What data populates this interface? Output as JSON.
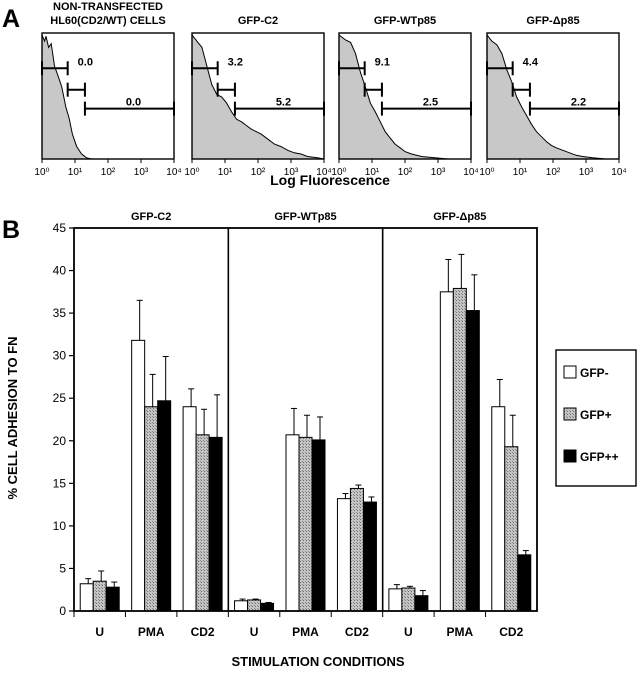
{
  "panel_a_label": "A",
  "panel_b_label": "B",
  "chart_data": [
    {
      "type": "area",
      "panel": "A",
      "xlabel": "Log Fluorescence",
      "x_scale": "log",
      "xlim": [
        1,
        10000
      ],
      "x_tick_labels": [
        "10⁰",
        "10¹",
        "10²",
        "10³",
        "10⁴"
      ],
      "histograms": [
        {
          "title": "NON-TRANSFECTED HL60(CD2/WT) CELLS",
          "title_lines": [
            "NON-TRANSFECTED",
            "HL60(CD2/WT) CELLS"
          ],
          "gates": [
            {
              "name": "GFP-",
              "range": [
                1,
                6
              ],
              "percent": "0.0"
            },
            {
              "name": "GFP+",
              "range": [
                6,
                20
              ],
              "percent": ""
            },
            {
              "name": "GFP++",
              "range": [
                20,
                10000
              ],
              "percent": "0.0"
            }
          ],
          "curve": [
            [
              0,
              1.0
            ],
            [
              0.08,
              0.95
            ],
            [
              0.12,
              0.99
            ],
            [
              0.2,
              0.9
            ],
            [
              0.28,
              0.93
            ],
            [
              0.38,
              0.75
            ],
            [
              0.5,
              0.66
            ],
            [
              0.6,
              0.58
            ],
            [
              0.72,
              0.42
            ],
            [
              0.82,
              0.33
            ],
            [
              0.92,
              0.2
            ],
            [
              1.05,
              0.1
            ],
            [
              1.2,
              0.04
            ],
            [
              1.35,
              0.01
            ],
            [
              1.5,
              0.0
            ],
            [
              4.0,
              0.0
            ]
          ]
        },
        {
          "title": "GFP-C2",
          "title_lines": [
            "GFP-C2"
          ],
          "gates": [
            {
              "name": "GFP-",
              "range": [
                1,
                6
              ],
              "percent": "3.2"
            },
            {
              "name": "GFP+",
              "range": [
                6,
                20
              ],
              "percent": ""
            },
            {
              "name": "GFP++",
              "range": [
                20,
                10000
              ],
              "percent": "5.2"
            }
          ],
          "curve": [
            [
              0,
              1.0
            ],
            [
              0.15,
              0.95
            ],
            [
              0.3,
              0.9
            ],
            [
              0.4,
              0.8
            ],
            [
              0.5,
              0.7
            ],
            [
              0.6,
              0.6
            ],
            [
              0.75,
              0.52
            ],
            [
              0.9,
              0.5
            ],
            [
              1.05,
              0.45
            ],
            [
              1.2,
              0.38
            ],
            [
              1.35,
              0.32
            ],
            [
              1.5,
              0.3
            ],
            [
              1.65,
              0.27
            ],
            [
              1.8,
              0.24
            ],
            [
              1.95,
              0.22
            ],
            [
              2.1,
              0.2
            ],
            [
              2.3,
              0.16
            ],
            [
              2.5,
              0.12
            ],
            [
              2.7,
              0.1
            ],
            [
              2.9,
              0.07
            ],
            [
              3.1,
              0.05
            ],
            [
              3.3,
              0.04
            ],
            [
              3.5,
              0.02
            ],
            [
              3.8,
              0.01
            ],
            [
              4.0,
              0.0
            ]
          ]
        },
        {
          "title": "GFP-WTp85",
          "title_lines": [
            "GFP-WTp85"
          ],
          "gates": [
            {
              "name": "GFP-",
              "range": [
                1,
                6
              ],
              "percent": "9.1"
            },
            {
              "name": "GFP+",
              "range": [
                6,
                20
              ],
              "percent": ""
            },
            {
              "name": "GFP++",
              "range": [
                20,
                10000
              ],
              "percent": "2.5"
            }
          ],
          "curve": [
            [
              0,
              1.0
            ],
            [
              0.2,
              0.96
            ],
            [
              0.35,
              0.94
            ],
            [
              0.5,
              0.85
            ],
            [
              0.65,
              0.7
            ],
            [
              0.8,
              0.58
            ],
            [
              0.95,
              0.45
            ],
            [
              1.1,
              0.38
            ],
            [
              1.25,
              0.3
            ],
            [
              1.4,
              0.22
            ],
            [
              1.55,
              0.17
            ],
            [
              1.7,
              0.12
            ],
            [
              1.85,
              0.09
            ],
            [
              2.0,
              0.06
            ],
            [
              2.2,
              0.04
            ],
            [
              2.5,
              0.02
            ],
            [
              2.9,
              0.01
            ],
            [
              3.3,
              0.0
            ],
            [
              4.0,
              0.0
            ]
          ]
        },
        {
          "title": "GFP-Δp85",
          "title_lines": [
            "GFP-Δp85"
          ],
          "gates": [
            {
              "name": "GFP-",
              "range": [
                1,
                6
              ],
              "percent": "4.4"
            },
            {
              "name": "GFP+",
              "range": [
                6,
                20
              ],
              "percent": ""
            },
            {
              "name": "GFP++",
              "range": [
                20,
                10000
              ],
              "percent": "2.2"
            }
          ],
          "curve": [
            [
              0,
              1.0
            ],
            [
              0.15,
              0.95
            ],
            [
              0.3,
              0.92
            ],
            [
              0.45,
              0.85
            ],
            [
              0.6,
              0.72
            ],
            [
              0.75,
              0.62
            ],
            [
              0.9,
              0.5
            ],
            [
              1.05,
              0.42
            ],
            [
              1.2,
              0.35
            ],
            [
              1.35,
              0.28
            ],
            [
              1.5,
              0.22
            ],
            [
              1.65,
              0.18
            ],
            [
              1.8,
              0.14
            ],
            [
              1.95,
              0.11
            ],
            [
              2.1,
              0.09
            ],
            [
              2.3,
              0.07
            ],
            [
              2.5,
              0.05
            ],
            [
              2.7,
              0.03
            ],
            [
              2.9,
              0.02
            ],
            [
              3.2,
              0.01
            ],
            [
              3.6,
              0.0
            ],
            [
              4.0,
              0.0
            ]
          ]
        }
      ]
    },
    {
      "type": "bar",
      "panel": "B",
      "xlabel": "STIMULATION CONDITIONS",
      "ylabel": "% CELL ADHESION TO FN",
      "ylim": [
        0,
        45
      ],
      "yticks": [
        0,
        5,
        10,
        15,
        20,
        25,
        30,
        35,
        40,
        45
      ],
      "series_names": [
        "GFP-",
        "GFP+",
        "GFP++"
      ],
      "series_colors": [
        "#ffffff",
        "#a6a6a6",
        "#000000"
      ],
      "legend_position": "right",
      "groups": [
        {
          "title": "GFP-C2",
          "categories": [
            "U",
            "PMA",
            "CD2"
          ],
          "series": [
            {
              "name": "GFP-",
              "values": [
                3.2,
                31.8,
                24.0
              ],
              "errors": [
                0.6,
                4.7,
                2.1
              ]
            },
            {
              "name": "GFP+",
              "values": [
                3.5,
                24.0,
                20.7
              ],
              "errors": [
                1.2,
                3.8,
                3.0
              ]
            },
            {
              "name": "GFP++",
              "values": [
                2.8,
                24.7,
                20.4
              ],
              "errors": [
                0.6,
                5.2,
                5.0
              ]
            }
          ]
        },
        {
          "title": "GFP-WTp85",
          "categories": [
            "U",
            "PMA",
            "CD2"
          ],
          "series": [
            {
              "name": "GFP-",
              "values": [
                1.2,
                20.7,
                13.2
              ],
              "errors": [
                0.2,
                3.1,
                0.6
              ]
            },
            {
              "name": "GFP+",
              "values": [
                1.3,
                20.4,
                14.4
              ],
              "errors": [
                0.1,
                2.6,
                0.4
              ]
            },
            {
              "name": "GFP++",
              "values": [
                0.9,
                20.1,
                12.8
              ],
              "errors": [
                0.1,
                2.7,
                0.6
              ]
            }
          ]
        },
        {
          "title": "GFP-Δp85",
          "categories": [
            "U",
            "PMA",
            "CD2"
          ],
          "series": [
            {
              "name": "GFP-",
              "values": [
                2.6,
                37.5,
                24.0
              ],
              "errors": [
                0.5,
                3.8,
                3.2
              ]
            },
            {
              "name": "GFP+",
              "values": [
                2.7,
                37.9,
                19.3
              ],
              "errors": [
                0.2,
                4.0,
                3.7
              ]
            },
            {
              "name": "GFP++",
              "values": [
                1.8,
                35.3,
                6.6
              ],
              "errors": [
                0.6,
                4.2,
                0.5
              ]
            }
          ]
        }
      ]
    }
  ]
}
